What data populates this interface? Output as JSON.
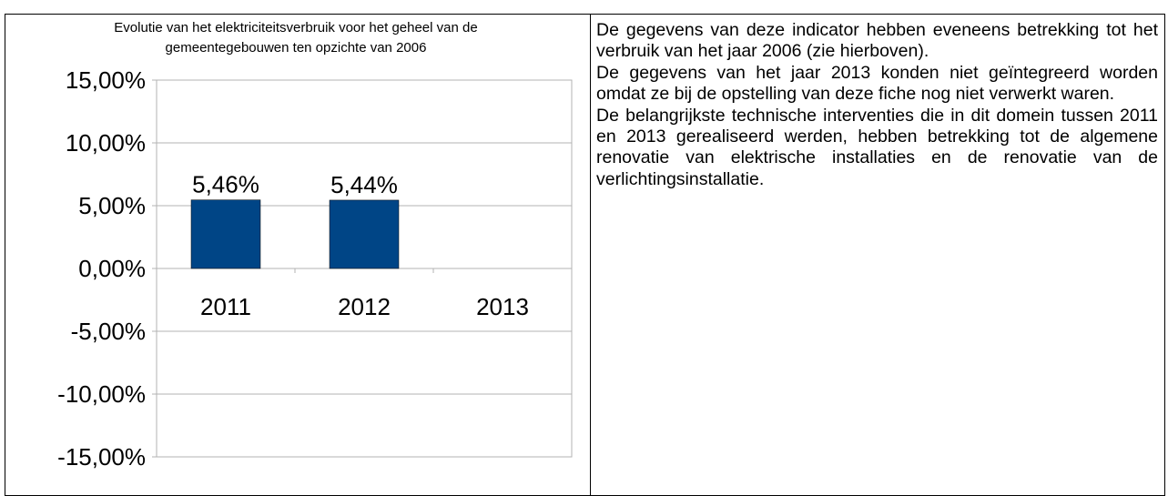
{
  "chart_data": {
    "type": "bar",
    "title": "Evolutie van het elektriciteitsverbruik voor het geheel van de gemeentegebouwen ten opzichte van 2006",
    "categories": [
      "2011",
      "2012",
      "2013"
    ],
    "values": [
      5.46,
      5.44,
      null
    ],
    "value_labels": [
      "5,46%",
      "5,44%",
      null
    ],
    "color": "#004586",
    "ylim": [
      -15,
      15
    ],
    "yticks": [
      {
        "value": -15,
        "label": "-15,00%"
      },
      {
        "value": -10,
        "label": "-10,00%"
      },
      {
        "value": -5,
        "label": "-5,00%"
      },
      {
        "value": 0,
        "label": "0,00%"
      },
      {
        "value": 5,
        "label": "5,00%"
      },
      {
        "value": 10,
        "label": "10,00%"
      },
      {
        "value": 15,
        "label": "15,00%"
      }
    ],
    "grid": true
  },
  "text": {
    "paragraphs": [
      "De gegevens van deze indicator hebben eveneens betrekking tot het verbruik van het jaar 2006 (zie hierboven).",
      "De gegevens van het jaar 2013 konden niet geïntegreerd worden omdat ze bij de opstelling van deze fiche nog niet verwerkt waren.",
      "De belangrijkste technische interventies die in dit domein tussen 2011 en 2013 gerealiseerd werden, hebben betrekking tot de algemene renovatie van elektrische installaties en de renovatie van de verlichtingsinstallatie."
    ]
  }
}
